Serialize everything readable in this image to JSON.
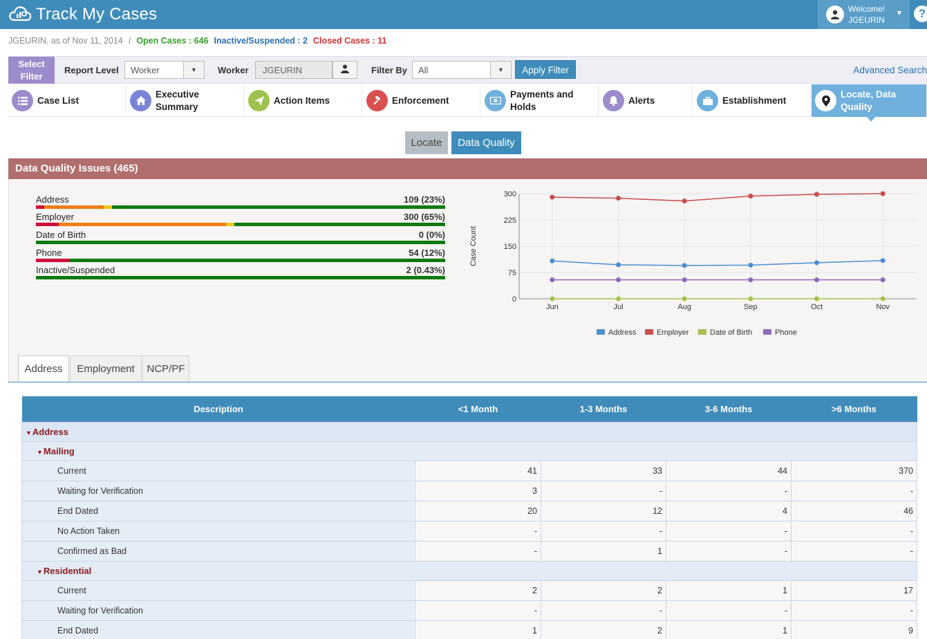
{
  "app": {
    "title": "Track My Cases"
  },
  "user": {
    "welcome": "Welcome!",
    "name": "JGEURIN"
  },
  "help_label": "?",
  "status": {
    "user_asof": "JGEURIN, as of Nov 11, 2014",
    "separator": "/",
    "open": "Open Cases : 646",
    "inactive": "Inactive/Suspended : 2",
    "closed": "Closed Cases : 11"
  },
  "filter": {
    "select_filter": "Select Filter",
    "report_level_label": "Report Level",
    "report_level_value": "Worker",
    "worker_label": "Worker",
    "worker_value": "JGEURIN",
    "filter_by_label": "Filter By",
    "filter_by_value": "All",
    "apply_label": "Apply Filter",
    "advanced_search": "Advanced Search"
  },
  "nav": [
    {
      "label": "Case List",
      "icon": "list-icon",
      "color": "#9d8ccb"
    },
    {
      "label": "Executive Summary",
      "icon": "home-icon",
      "color": "#7a84d6"
    },
    {
      "label": "Action Items",
      "icon": "paper-plane-icon",
      "color": "#9ec24f"
    },
    {
      "label": "Enforcement",
      "icon": "gavel-icon",
      "color": "#d9504f"
    },
    {
      "label": "Payments and Holds",
      "icon": "money-icon",
      "color": "#6fb0dc"
    },
    {
      "label": "Alerts",
      "icon": "bell-icon",
      "color": "#9d8ccb"
    },
    {
      "label": "Establishment",
      "icon": "briefcase-icon",
      "color": "#6fb0dc"
    },
    {
      "label": "Locate, Data Quality",
      "icon": "map-marker-icon",
      "color": "#ffffff",
      "active": true
    }
  ],
  "subtabs": {
    "locate": "Locate",
    "data_quality": "Data Quality"
  },
  "panel": {
    "title": "Data Quality Issues (465)"
  },
  "issues": [
    {
      "label": "Address",
      "value": "109 (23%)",
      "segments": [
        {
          "color": "#d0103a",
          "fraction": 0.02
        },
        {
          "color": "#f07d14",
          "fraction": 0.145
        },
        {
          "color": "#f0c814",
          "fraction": 0.02
        }
      ]
    },
    {
      "label": "Employer",
      "value": "300 (65%)",
      "segments": [
        {
          "color": "#d0103a",
          "fraction": 0.055
        },
        {
          "color": "#f07d14",
          "fraction": 0.41
        },
        {
          "color": "#f0c814",
          "fraction": 0.02
        }
      ]
    },
    {
      "label": "Date of Birth",
      "value": "0 (0%)",
      "segments": []
    },
    {
      "label": "Phone",
      "value": "54 (12%)",
      "segments": [
        {
          "color": "#d0103a",
          "fraction": 0.083
        }
      ]
    },
    {
      "label": "Inactive/Suspended",
      "value": "2 (0.43%)",
      "segments": []
    }
  ],
  "chart_data": {
    "type": "line",
    "categories": [
      "Jun",
      "Jul",
      "Aug",
      "Sep",
      "Oct",
      "Nov"
    ],
    "ylabel": "Case Count",
    "ylim": [
      0,
      300
    ],
    "yticks": [
      0,
      75,
      150,
      225,
      300
    ],
    "grid": true,
    "legend": "bottom",
    "series": [
      {
        "name": "Address",
        "color": "#4a8fd0",
        "values": [
          108,
          97,
          95,
          96,
          103,
          109
        ]
      },
      {
        "name": "Employer",
        "color": "#c94b4b",
        "values": [
          290,
          287,
          279,
          293,
          298,
          300
        ]
      },
      {
        "name": "Date of Birth",
        "color": "#a6c34a",
        "values": [
          0,
          0,
          0,
          0,
          0,
          0
        ]
      },
      {
        "name": "Phone",
        "color": "#8a6bb8",
        "values": [
          54,
          54,
          54,
          54,
          54,
          54
        ]
      }
    ]
  },
  "lower_tabs": [
    "Address",
    "Employment",
    "NCP/PF"
  ],
  "table": {
    "headers": [
      "Description",
      "<1 Month",
      "1-3 Months",
      "3-6 Months",
      ">6 Months"
    ],
    "groups": [
      {
        "label": "Address"
      },
      {
        "label": "Mailing",
        "level": 2
      },
      {
        "row": [
          "Current",
          "41",
          "33",
          "44",
          "370"
        ]
      },
      {
        "row": [
          "Waiting for Verification",
          "3",
          "-",
          "-",
          "-"
        ]
      },
      {
        "row": [
          "End Dated",
          "20",
          "12",
          "4",
          "46"
        ]
      },
      {
        "row": [
          "No Action Taken",
          "-",
          "-",
          "-",
          "-"
        ]
      },
      {
        "row": [
          "Confirmed as Bad",
          "-",
          "1",
          "-",
          "-"
        ]
      },
      {
        "label": "Residential",
        "level": 2
      },
      {
        "row": [
          "Current",
          "2",
          "2",
          "1",
          "17"
        ]
      },
      {
        "row": [
          "Waiting for Verification",
          "-",
          "-",
          "-",
          "-"
        ]
      },
      {
        "row": [
          "End Dated",
          "1",
          "2",
          "1",
          "9"
        ]
      }
    ]
  }
}
